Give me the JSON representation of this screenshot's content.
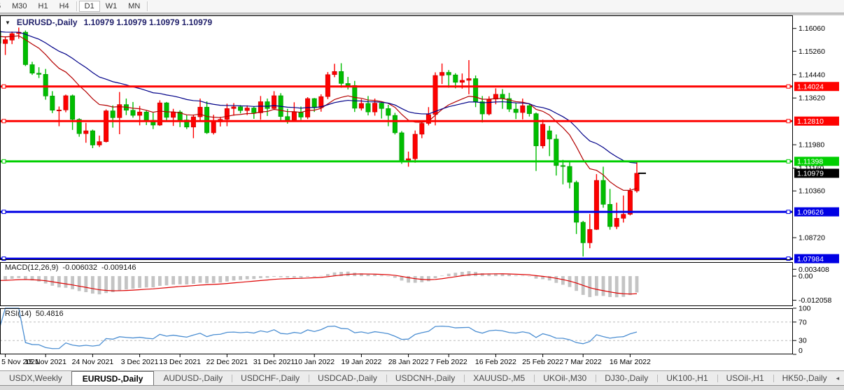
{
  "toolbar": {
    "timeframes": [
      "5",
      "M30",
      "H1",
      "H4",
      "D1",
      "W1",
      "MN"
    ],
    "active": "D1"
  },
  "chart": {
    "title": "EURUSD-,Daily",
    "quote_line": "1.10979 1.10979 1.10979 1.10979",
    "dropdown_icon": "▼"
  },
  "indicators": {
    "macd": {
      "name": "MACD(12,26,9)",
      "value": "-0.006032",
      "signal_value": "-0.009146",
      "axis": [
        {
          "label": "0.003408",
          "v": 0.003408
        },
        {
          "label": "0.00",
          "v": 0
        },
        {
          "label": "-0.012058",
          "v": -0.012058
        }
      ]
    },
    "rsi": {
      "name": "RSI(14)",
      "value": "50.4816",
      "levels": [
        70,
        30
      ],
      "axis": [
        {
          "label": "100",
          "v": 100
        },
        {
          "label": "70",
          "v": 70
        },
        {
          "label": "30",
          "v": 30
        },
        {
          "label": "0",
          "v": 0
        }
      ]
    },
    "moving_averages": [
      {
        "name": "ma-fast",
        "color": "#b40000",
        "period": 14,
        "seed": 1.1578
      },
      {
        "name": "ma-slow",
        "color": "#000088",
        "period": 30,
        "seed": 1.1595
      }
    ]
  },
  "price_axis": {
    "ticks": [
      {
        "label": "1.16060",
        "v": 1.1606
      },
      {
        "label": "1.15260",
        "v": 1.1526
      },
      {
        "label": "1.14440",
        "v": 1.1444
      },
      {
        "label": "1.13620",
        "v": 1.1362
      },
      {
        "label": "1.11980",
        "v": 1.1198
      },
      {
        "label": "1.11160",
        "v": 1.1116
      },
      {
        "label": "1.10360",
        "v": 1.1036
      },
      {
        "label": "1.08720",
        "v": 1.0872
      }
    ]
  },
  "levels": [
    {
      "label": "1.14024",
      "price": 1.14024,
      "color": "#fe0200"
    },
    {
      "label": "1.12810",
      "price": 1.1281,
      "color": "#fe0200"
    },
    {
      "label": "1.11398",
      "price": 1.11398,
      "color": "#00cf00"
    },
    {
      "label": "1.09626",
      "price": 1.09626,
      "color": "#0000e4"
    },
    {
      "label": "1.07984",
      "price": 1.07984,
      "color": "#0000e4"
    }
  ],
  "current_price": {
    "label": "1.10979",
    "price": 1.10979,
    "color": "#000000"
  },
  "dates": [
    {
      "label": "5 Nov 2021",
      "i": 1
    },
    {
      "label": "15 Nov 2021",
      "i": 7
    },
    {
      "label": "24 Nov 2021",
      "i": 14
    },
    {
      "label": "3 Dec 2021",
      "i": 21
    },
    {
      "label": "13 Dec 2021",
      "i": 27
    },
    {
      "label": "22 Dec 2021",
      "i": 34
    },
    {
      "label": "31 Dec 2021",
      "i": 41
    },
    {
      "label": "10 Jan 2022",
      "i": 47
    },
    {
      "label": "19 Jan 2022",
      "i": 54
    },
    {
      "label": "28 Jan 2022",
      "i": 61
    },
    {
      "label": "7 Feb 2022",
      "i": 67
    },
    {
      "label": "16 Feb 2022",
      "i": 74
    },
    {
      "label": "25 Feb 2022",
      "i": 81
    },
    {
      "label": "7 Mar 2022",
      "i": 87
    },
    {
      "label": "16 Mar 2022",
      "i": 94
    }
  ],
  "tabs": [
    {
      "label": "USDX,Weekly",
      "active": false
    },
    {
      "label": "EURUSD-,Daily",
      "active": true
    },
    {
      "label": "AUDUSD-,Daily",
      "active": false
    },
    {
      "label": "USDCHF-,Daily",
      "active": false
    },
    {
      "label": "USDCAD-,Daily",
      "active": false
    },
    {
      "label": "USDCNH-,Daily",
      "active": false
    },
    {
      "label": "XAUUSD-,M5",
      "active": false
    },
    {
      "label": "UKOil-,M30",
      "active": false
    },
    {
      "label": "DJ30-,Daily",
      "active": false
    },
    {
      "label": "UK100-,H1",
      "active": false
    },
    {
      "label": "USOil-,H1",
      "active": false
    },
    {
      "label": "HK50-,Daily",
      "active": false
    }
  ],
  "tab_scroll": {
    "left": "◂",
    "right": "▸"
  },
  "chart_data": {
    "type": "candlestick",
    "symbol": "EURUSD",
    "timeframe": "Daily",
    "price_axis_range": [
      1.0794,
      1.1652
    ],
    "current_bar": {
      "o": 1.10979,
      "h": 1.10979,
      "l": 1.10979,
      "c": 1.10979
    },
    "colors": {
      "up": "#fd0000",
      "up_stroke": "#c40000",
      "down": "#00bd00",
      "down_stroke": "#009300",
      "macd_hist": "#c4c4c4",
      "macd_signal": "#de0000",
      "rsi": "#4b8ed2",
      "rsi_grid": "#bbbbbb"
    },
    "candles": [
      [
        "4 Nov 2021",
        1.1597,
        1.1608,
        1.1527,
        1.1554
      ],
      [
        "5 Nov 2021",
        1.1553,
        1.1578,
        1.1513,
        1.1567
      ],
      [
        "8 Nov 2021",
        1.1565,
        1.1595,
        1.1551,
        1.1588
      ],
      [
        "9 Nov 2021",
        1.1588,
        1.1609,
        1.157,
        1.1593
      ],
      [
        "10 Nov 2021",
        1.1593,
        1.1599,
        1.1474,
        1.1479
      ],
      [
        "11 Nov 2021",
        1.1479,
        1.1489,
        1.1443,
        1.1449
      ],
      [
        "12 Nov 2021",
        1.1449,
        1.147,
        1.1432,
        1.1445
      ],
      [
        "15 Nov 2021",
        1.1445,
        1.1464,
        1.1356,
        1.1369
      ],
      [
        "16 Nov 2021",
        1.1369,
        1.1386,
        1.1309,
        1.1319
      ],
      [
        "17 Nov 2021",
        1.1319,
        1.1332,
        1.1263,
        1.132
      ],
      [
        "18 Nov 2021",
        1.132,
        1.1374,
        1.1312,
        1.137
      ],
      [
        "19 Nov 2021",
        1.137,
        1.1374,
        1.125,
        1.1287
      ],
      [
        "22 Nov 2021",
        1.1287,
        1.1291,
        1.1226,
        1.1237
      ],
      [
        "23 Nov 2021",
        1.1237,
        1.1275,
        1.1205,
        1.1247
      ],
      [
        "24 Nov 2021",
        1.1247,
        1.1251,
        1.1186,
        1.1197
      ],
      [
        "25 Nov 2021",
        1.1197,
        1.123,
        1.119,
        1.1209
      ],
      [
        "26 Nov 2021",
        1.1209,
        1.1322,
        1.1206,
        1.1317
      ],
      [
        "29 Nov 2021",
        1.1317,
        1.1336,
        1.1258,
        1.1293
      ],
      [
        "30 Nov 2021",
        1.1293,
        1.1383,
        1.1235,
        1.1339
      ],
      [
        "1 Dec 2021",
        1.1339,
        1.136,
        1.1302,
        1.1319
      ],
      [
        "2 Dec 2021",
        1.1319,
        1.1348,
        1.1293,
        1.1301
      ],
      [
        "3 Dec 2021",
        1.1301,
        1.1334,
        1.1266,
        1.1313
      ],
      [
        "6 Dec 2021",
        1.1313,
        1.1319,
        1.1267,
        1.1284
      ],
      [
        "7 Dec 2021",
        1.1284,
        1.131,
        1.1253,
        1.1267
      ],
      [
        "8 Dec 2021",
        1.1267,
        1.1354,
        1.1264,
        1.1345
      ],
      [
        "9 Dec 2021",
        1.1345,
        1.1348,
        1.128,
        1.1294
      ],
      [
        "10 Dec 2021",
        1.1294,
        1.1324,
        1.1264,
        1.1313
      ],
      [
        "13 Dec 2021",
        1.1313,
        1.1319,
        1.126,
        1.1285
      ],
      [
        "14 Dec 2021",
        1.1285,
        1.1303,
        1.1253,
        1.126
      ],
      [
        "15 Dec 2021",
        1.126,
        1.1304,
        1.1221,
        1.1296
      ],
      [
        "16 Dec 2021",
        1.1296,
        1.136,
        1.128,
        1.133
      ],
      [
        "17 Dec 2021",
        1.133,
        1.135,
        1.1236,
        1.124
      ],
      [
        "20 Dec 2021",
        1.124,
        1.1303,
        1.1234,
        1.1278
      ],
      [
        "21 Dec 2021",
        1.1278,
        1.1296,
        1.1262,
        1.1287
      ],
      [
        "22 Dec 2021",
        1.1287,
        1.1342,
        1.1263,
        1.1325
      ],
      [
        "23 Dec 2021",
        1.1325,
        1.1344,
        1.13,
        1.1331
      ],
      [
        "24 Dec 2021",
        1.1331,
        1.1337,
        1.1308,
        1.1318
      ],
      [
        "27 Dec 2021",
        1.1318,
        1.1336,
        1.1302,
        1.1327
      ],
      [
        "28 Dec 2021",
        1.1327,
        1.1332,
        1.1289,
        1.131
      ],
      [
        "29 Dec 2021",
        1.131,
        1.1369,
        1.1286,
        1.1349
      ],
      [
        "30 Dec 2021",
        1.1349,
        1.136,
        1.1299,
        1.1325
      ],
      [
        "31 Dec 2021",
        1.1325,
        1.1386,
        1.132,
        1.137
      ],
      [
        "3 Jan 2022",
        1.137,
        1.1379,
        1.1279,
        1.1297
      ],
      [
        "4 Jan 2022",
        1.1297,
        1.1324,
        1.1272,
        1.1285
      ],
      [
        "5 Jan 2022",
        1.1285,
        1.1347,
        1.1278,
        1.1313
      ],
      [
        "6 Jan 2022",
        1.1313,
        1.1332,
        1.1285,
        1.1295
      ],
      [
        "7 Jan 2022",
        1.1295,
        1.1365,
        1.1288,
        1.136
      ],
      [
        "10 Jan 2022",
        1.136,
        1.1362,
        1.1313,
        1.1328
      ],
      [
        "11 Jan 2022",
        1.1328,
        1.1375,
        1.1314,
        1.1367
      ],
      [
        "12 Jan 2022",
        1.1367,
        1.1453,
        1.1358,
        1.1444
      ],
      [
        "13 Jan 2022",
        1.1444,
        1.1482,
        1.1435,
        1.1455
      ],
      [
        "14 Jan 2022",
        1.1455,
        1.1484,
        1.1398,
        1.1413
      ],
      [
        "17 Jan 2022",
        1.1413,
        1.1436,
        1.1392,
        1.1406
      ],
      [
        "18 Jan 2022",
        1.1406,
        1.1422,
        1.1313,
        1.1326
      ],
      [
        "19 Jan 2022",
        1.1326,
        1.1358,
        1.1318,
        1.1343
      ],
      [
        "20 Jan 2022",
        1.1343,
        1.1369,
        1.1301,
        1.1313
      ],
      [
        "21 Jan 2022",
        1.1313,
        1.136,
        1.13,
        1.1344
      ],
      [
        "24 Jan 2022",
        1.1344,
        1.1347,
        1.129,
        1.1325
      ],
      [
        "25 Jan 2022",
        1.1325,
        1.1338,
        1.1263,
        1.1301
      ],
      [
        "26 Jan 2022",
        1.1301,
        1.131,
        1.1234,
        1.124
      ],
      [
        "27 Jan 2022",
        1.124,
        1.1246,
        1.1131,
        1.1144
      ],
      [
        "28 Jan 2022",
        1.1144,
        1.1174,
        1.1121,
        1.1149
      ],
      [
        "31 Jan 2022",
        1.1149,
        1.1248,
        1.1135,
        1.1235
      ],
      [
        "1 Feb 2022",
        1.1235,
        1.1279,
        1.1221,
        1.1273
      ],
      [
        "2 Feb 2022",
        1.1273,
        1.133,
        1.1266,
        1.1304
      ],
      [
        "3 Feb 2022",
        1.1304,
        1.1452,
        1.1266,
        1.1441
      ],
      [
        "4 Feb 2022",
        1.1441,
        1.1483,
        1.1411,
        1.1452
      ],
      [
        "7 Feb 2022",
        1.1452,
        1.146,
        1.1398,
        1.1443
      ],
      [
        "8 Feb 2022",
        1.1443,
        1.1449,
        1.1396,
        1.1417
      ],
      [
        "9 Feb 2022",
        1.1417,
        1.1448,
        1.1395,
        1.1424
      ],
      [
        "10 Feb 2022",
        1.1424,
        1.1495,
        1.1375,
        1.143
      ],
      [
        "11 Feb 2022",
        1.143,
        1.1441,
        1.133,
        1.1349
      ],
      [
        "14 Feb 2022",
        1.1349,
        1.1369,
        1.1276,
        1.1306
      ],
      [
        "15 Feb 2022",
        1.1306,
        1.1368,
        1.1301,
        1.1358
      ],
      [
        "16 Feb 2022",
        1.1358,
        1.1396,
        1.134,
        1.1375
      ],
      [
        "17 Feb 2022",
        1.1375,
        1.1393,
        1.1324,
        1.136
      ],
      [
        "18 Feb 2022",
        1.136,
        1.138,
        1.1313,
        1.1323
      ],
      [
        "21 Feb 2022",
        1.1323,
        1.1346,
        1.1288,
        1.1311
      ],
      [
        "22 Feb 2022",
        1.1311,
        1.136,
        1.1287,
        1.1335
      ],
      [
        "23 Feb 2022",
        1.1335,
        1.1343,
        1.1297,
        1.1307
      ],
      [
        "24 Feb 2022",
        1.1307,
        1.1311,
        1.1106,
        1.1194
      ],
      [
        "25 Feb 2022",
        1.1194,
        1.1286,
        1.1185,
        1.127
      ],
      [
        "28 Feb 2022",
        1.1247,
        1.1264,
        1.1158,
        1.1218
      ],
      [
        "1 Mar 2022",
        1.1218,
        1.1234,
        1.109,
        1.1125
      ],
      [
        "2 Mar 2022",
        1.1125,
        1.1145,
        1.1059,
        1.1122
      ],
      [
        "3 Mar 2022",
        1.1122,
        1.1141,
        1.1045,
        1.1066
      ],
      [
        "4 Mar 2022",
        1.1066,
        1.1072,
        1.0885,
        1.0926
      ],
      [
        "7 Mar 2022",
        1.0926,
        1.0931,
        1.0806,
        1.0854
      ],
      [
        "8 Mar 2022",
        1.0854,
        1.0955,
        1.0835,
        1.0901
      ],
      [
        "9 Mar 2022",
        1.0901,
        1.1095,
        1.0899,
        1.1073
      ],
      [
        "10 Mar 2022",
        1.1073,
        1.1121,
        1.0977,
        1.0989
      ],
      [
        "11 Mar 2022",
        1.0989,
        1.1043,
        1.09,
        1.0911
      ],
      [
        "14 Mar 2022",
        1.0911,
        1.0995,
        1.0902,
        1.094
      ],
      [
        "15 Mar 2022",
        1.094,
        1.102,
        1.0925,
        1.0954
      ],
      [
        "16 Mar 2022",
        1.0954,
        1.1046,
        1.095,
        1.1036
      ],
      [
        "17 Mar 2022",
        1.1036,
        1.1137,
        1.103,
        1.1098
      ]
    ]
  }
}
